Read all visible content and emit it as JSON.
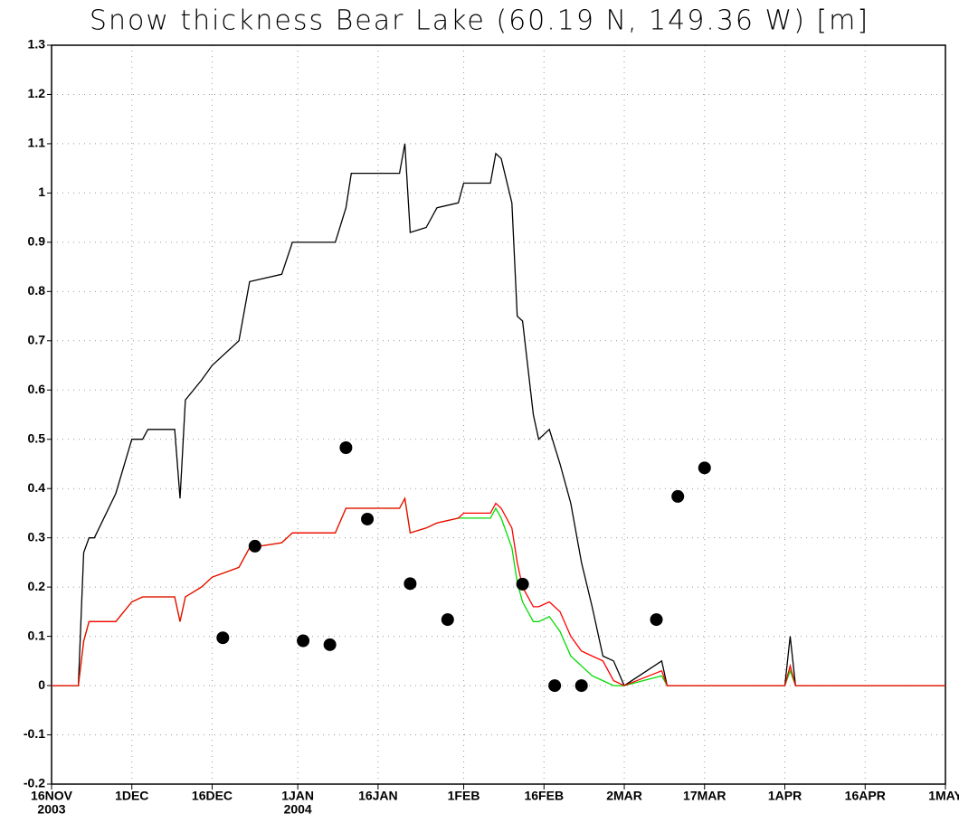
{
  "chart_data": {
    "type": "line",
    "title": "Snow thickness Bear Lake (60.19 N, 149.36 W) [m]",
    "xlim": [
      "2003-11-16",
      "2004-05-01"
    ],
    "xticks": [
      {
        "value": "2003-11-16",
        "label": "16NOV",
        "year": "2003"
      },
      {
        "value": "2003-12-01",
        "label": "1DEC"
      },
      {
        "value": "2003-12-16",
        "label": "16DEC"
      },
      {
        "value": "2004-01-01",
        "label": "1JAN",
        "year": "2004"
      },
      {
        "value": "2004-01-16",
        "label": "16JAN"
      },
      {
        "value": "2004-02-01",
        "label": "1FEB"
      },
      {
        "value": "2004-02-16",
        "label": "16FEB"
      },
      {
        "value": "2004-03-02",
        "label": "2MAR"
      },
      {
        "value": "2004-03-17",
        "label": "17MAR"
      },
      {
        "value": "2004-04-01",
        "label": "1APR"
      },
      {
        "value": "2004-04-16",
        "label": "16APR"
      },
      {
        "value": "2004-05-01",
        "label": "1MAY"
      }
    ],
    "ylim": [
      -0.2,
      1.3
    ],
    "yticks": [
      -0.2,
      -0.1,
      0,
      0.1,
      0.2,
      0.3,
      0.4,
      0.5,
      0.6,
      0.7,
      0.8,
      0.9,
      1,
      1.1,
      1.2,
      1.3
    ],
    "grid": true,
    "x": [
      "2003-11-16",
      "2003-11-21",
      "2003-11-22",
      "2003-11-23",
      "2003-11-24",
      "2003-11-28",
      "2003-12-01",
      "2003-12-03",
      "2003-12-04",
      "2003-12-09",
      "2003-12-10",
      "2003-12-11",
      "2003-12-14",
      "2003-12-16",
      "2003-12-21",
      "2003-12-23",
      "2003-12-29",
      "2003-12-31",
      "2004-01-08",
      "2004-01-10",
      "2004-01-11",
      "2004-01-20",
      "2004-01-21",
      "2004-01-22",
      "2004-01-25",
      "2004-01-27",
      "2004-01-31",
      "2004-02-01",
      "2004-02-06",
      "2004-02-07",
      "2004-02-08",
      "2004-02-10",
      "2004-02-11",
      "2004-02-12",
      "2004-02-14",
      "2004-02-15",
      "2004-02-17",
      "2004-02-19",
      "2004-02-21",
      "2004-02-23",
      "2004-02-25",
      "2004-02-27",
      "2004-02-29",
      "2004-03-02",
      "2004-03-09",
      "2004-03-10",
      "2004-03-11",
      "2004-04-01",
      "2004-04-02",
      "2004-04-03",
      "2004-05-01"
    ],
    "series": [
      {
        "color": "#000000",
        "values": [
          0,
          0,
          0.27,
          0.3,
          0.3,
          0.39,
          0.5,
          0.5,
          0.52,
          0.52,
          0.38,
          0.58,
          0.62,
          0.65,
          0.7,
          0.82,
          0.835,
          0.9,
          0.9,
          0.97,
          1.04,
          1.04,
          1.1,
          0.92,
          0.93,
          0.97,
          0.98,
          1.02,
          1.02,
          1.08,
          1.07,
          0.98,
          0.75,
          0.74,
          0.55,
          0.5,
          0.52,
          0.45,
          0.37,
          0.25,
          0.16,
          0.06,
          0.05,
          0,
          0.05,
          0,
          0,
          0,
          0.1,
          0,
          0
        ]
      },
      {
        "color": "#00dd00",
        "values": [
          0,
          0,
          0.09,
          0.13,
          0.13,
          0.13,
          0.17,
          0.18,
          0.18,
          0.18,
          0.13,
          0.18,
          0.2,
          0.22,
          0.24,
          0.28,
          0.29,
          0.31,
          0.31,
          0.36,
          0.36,
          0.36,
          0.38,
          0.31,
          0.32,
          0.33,
          0.34,
          0.34,
          0.34,
          0.36,
          0.34,
          0.28,
          0.21,
          0.17,
          0.13,
          0.13,
          0.14,
          0.11,
          0.06,
          0.04,
          0.02,
          0.01,
          0,
          0,
          0.02,
          0,
          0,
          0,
          0.03,
          0,
          0
        ]
      },
      {
        "color": "#ff0000",
        "values": [
          0,
          0,
          0.09,
          0.13,
          0.13,
          0.13,
          0.17,
          0.18,
          0.18,
          0.18,
          0.13,
          0.18,
          0.2,
          0.22,
          0.24,
          0.28,
          0.29,
          0.31,
          0.31,
          0.36,
          0.36,
          0.36,
          0.38,
          0.31,
          0.32,
          0.33,
          0.34,
          0.35,
          0.35,
          0.37,
          0.36,
          0.32,
          0.25,
          0.2,
          0.16,
          0.16,
          0.17,
          0.15,
          0.1,
          0.07,
          0.06,
          0.05,
          0.01,
          0,
          0.03,
          0,
          0,
          0,
          0.04,
          0,
          0
        ]
      },
      {
        "type": "scatter",
        "color": "#000000",
        "x": [
          "2003-12-18",
          "2003-12-24",
          "2004-01-02",
          "2004-01-07",
          "2004-01-10",
          "2004-01-14",
          "2004-01-22",
          "2004-01-29",
          "2004-02-12",
          "2004-02-18",
          "2004-02-23",
          "2004-03-08",
          "2004-03-12",
          "2004-03-17"
        ],
        "values": [
          0.097,
          0.283,
          0.091,
          0.083,
          0.483,
          0.338,
          0.207,
          0.134,
          0.206,
          0,
          0,
          0.134,
          0.384,
          0.442
        ]
      }
    ]
  }
}
